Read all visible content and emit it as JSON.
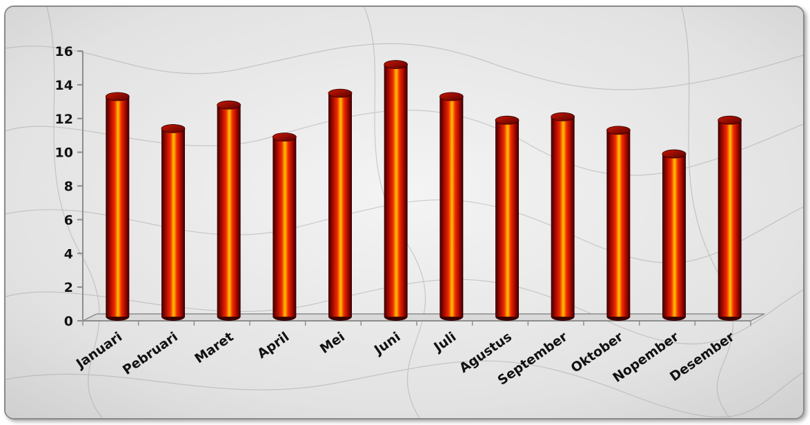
{
  "chart_data": {
    "type": "bar",
    "title": "",
    "xlabel": "",
    "ylabel": "",
    "categories": [
      "Januari",
      "Pebruari",
      "Maret",
      "April",
      "Mei",
      "Juni",
      "Juli",
      "Agustus",
      "September",
      "Oktober",
      "Nopember",
      "Desember"
    ],
    "values": [
      13.3,
      11.4,
      12.8,
      10.9,
      13.5,
      15.2,
      13.3,
      11.9,
      12.1,
      11.3,
      9.9,
      11.9
    ],
    "ylim": [
      0,
      16
    ],
    "yticks": [
      0,
      2,
      4,
      6,
      8,
      10,
      12,
      14,
      16
    ],
    "grid": false,
    "legend": "none",
    "bar_style": "3d-cylinder",
    "colors": {
      "bar_edge": "#5a0000",
      "bar_mid": "#e32000",
      "bar_center": "#ffe100",
      "axis": "#8c8c8c",
      "text": "#111111",
      "background": "#e6e6e6"
    }
  }
}
